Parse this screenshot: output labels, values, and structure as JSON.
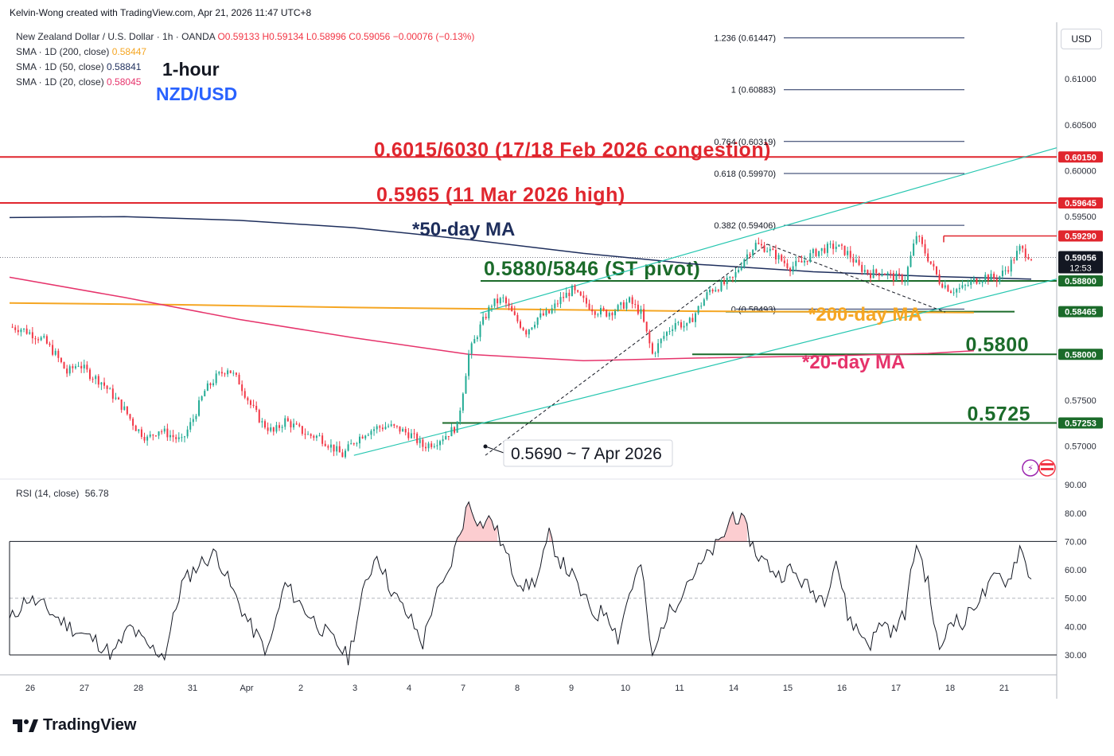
{
  "header": {
    "created_by": "Kelvin-Wong created with TradingView.com, Apr 21, 2026 11:47 UTC+8",
    "symbol": "New Zealand Dollar / U.S. Dollar · 1h · OANDA",
    "ohlc_o": "O0.59133",
    "ohlc_h": "H0.59134",
    "ohlc_l": "L0.58996",
    "ohlc_c": "C0.59056",
    "ohlc_change": "−0.00076 (−0.13%)",
    "sma200_label": "SMA · 1D (200, close)",
    "sma200_value": "0.58447",
    "sma50_label": "SMA · 1D (50, close)",
    "sma50_value": "0.58841",
    "sma20_label": "SMA · 1D (20, close)",
    "sma20_value": "0.58045",
    "timeframe_title": "1-hour",
    "pair_title": "NZD/USD"
  },
  "currency_button": "USD",
  "rsi_legend": {
    "label": "RSI (14, close)",
    "value": "56.78"
  },
  "footer_logo": "TradingView",
  "colors": {
    "up": "#22ab94",
    "down": "#f23645",
    "resistance": "#e0262e",
    "support": "#1b6b2a",
    "sma200": "#f5a623",
    "sma50": "#1e2e5c",
    "sma20": "#e6336b",
    "channel": "#26c6b0",
    "price_tag": "#131722",
    "title_blue": "#2962ff"
  },
  "chart_data": [
    {
      "type": "candlestick",
      "title": "New Zealand Dollar / U.S. Dollar · 1h · OANDA",
      "x_ticks": [
        "26",
        "27",
        "28",
        "31",
        "Apr",
        "2",
        "3",
        "4",
        "7",
        "8",
        "9",
        "10",
        "11",
        "14",
        "15",
        "16",
        "17",
        "18",
        "21"
      ],
      "y_ticks": [
        "0.61000",
        "0.60500",
        "0.60000",
        "0.59500",
        "0.57500",
        "0.57000"
      ],
      "ylim": [
        0.5665,
        0.616
      ],
      "close_path": [
        [
          0,
          0.583
        ],
        [
          2,
          0.5828
        ],
        [
          4,
          0.5822
        ],
        [
          6,
          0.5815
        ],
        [
          8,
          0.58
        ],
        [
          10,
          0.578
        ],
        [
          12,
          0.579
        ],
        [
          14,
          0.5778
        ],
        [
          16,
          0.577
        ],
        [
          18,
          0.5755
        ],
        [
          20,
          0.574
        ],
        [
          22,
          0.572
        ],
        [
          24,
          0.5708
        ],
        [
          26,
          0.5718
        ],
        [
          28,
          0.5712
        ],
        [
          30,
          0.5705
        ],
        [
          32,
          0.573
        ],
        [
          34,
          0.576
        ],
        [
          36,
          0.5775
        ],
        [
          38,
          0.5785
        ],
        [
          40,
          0.577
        ],
        [
          42,
          0.5745
        ],
        [
          44,
          0.5725
        ],
        [
          46,
          0.5715
        ],
        [
          48,
          0.5728
        ],
        [
          50,
          0.572
        ],
        [
          52,
          0.5712
        ],
        [
          54,
          0.571
        ],
        [
          56,
          0.57
        ],
        [
          58,
          0.569
        ],
        [
          60,
          0.5705
        ],
        [
          62,
          0.5715
        ],
        [
          64,
          0.572
        ],
        [
          66,
          0.5722
        ],
        [
          68,
          0.5718
        ],
        [
          70,
          0.5712
        ],
        [
          72,
          0.57
        ],
        [
          74,
          0.5704
        ],
        [
          76,
          0.5712
        ],
        [
          78,
          0.5722
        ],
        [
          80,
          0.58
        ],
        [
          82,
          0.583
        ],
        [
          84,
          0.5855
        ],
        [
          86,
          0.586
        ],
        [
          88,
          0.584
        ],
        [
          90,
          0.5825
        ],
        [
          92,
          0.584
        ],
        [
          94,
          0.5845
        ],
        [
          96,
          0.586
        ],
        [
          98,
          0.587
        ],
        [
          100,
          0.5858
        ],
        [
          102,
          0.5848
        ],
        [
          104,
          0.5845
        ],
        [
          106,
          0.585
        ],
        [
          108,
          0.5858
        ],
        [
          110,
          0.5845
        ],
        [
          112,
          0.58
        ],
        [
          114,
          0.582
        ],
        [
          116,
          0.5835
        ],
        [
          118,
          0.583
        ],
        [
          120,
          0.585
        ],
        [
          122,
          0.587
        ],
        [
          124,
          0.5875
        ],
        [
          126,
          0.5882
        ],
        [
          128,
          0.5905
        ],
        [
          130,
          0.592
        ],
        [
          132,
          0.5915
        ],
        [
          134,
          0.5905
        ],
        [
          136,
          0.5895
        ],
        [
          138,
          0.59
        ],
        [
          140,
          0.591
        ],
        [
          142,
          0.5915
        ],
        [
          144,
          0.5918
        ],
        [
          146,
          0.591
        ],
        [
          148,
          0.5895
        ],
        [
          150,
          0.5888
        ],
        [
          152,
          0.589
        ],
        [
          154,
          0.5884
        ],
        [
          156,
          0.5882
        ],
        [
          158,
          0.593
        ],
        [
          160,
          0.5905
        ],
        [
          162,
          0.588
        ],
        [
          164,
          0.587
        ],
        [
          166,
          0.5872
        ],
        [
          168,
          0.588
        ],
        [
          170,
          0.5885
        ],
        [
          172,
          0.5882
        ],
        [
          174,
          0.5895
        ],
        [
          176,
          0.5915
        ],
        [
          178,
          0.5906
        ]
      ],
      "horizontal_levels": [
        {
          "price": 0.6015,
          "label": "0.6015/6030 (17/18 Feb 2026 congestion)",
          "tag": "0.60150",
          "color": "resistance"
        },
        {
          "price": 0.5965,
          "label": "0.5965 (11 Mar 2026 high)",
          "tag": "0.59645",
          "color": "resistance"
        },
        {
          "price": 0.5929,
          "label": "",
          "tag": "0.59290",
          "color": "resistance"
        },
        {
          "price": 0.588,
          "label": "0.5880/5846 (ST pivot)",
          "tag": "0.58800",
          "color": "support"
        },
        {
          "price": 0.58465,
          "label": "",
          "tag": "0.58465",
          "color": "support"
        },
        {
          "price": 0.58,
          "label": "0.5800",
          "tag": "0.58000",
          "color": "support"
        },
        {
          "price": 0.57253,
          "label": "0.5725",
          "tag": "0.57253",
          "color": "support"
        }
      ],
      "current_price": {
        "value": "0.59056",
        "countdown": "12:53"
      },
      "fibonacci": [
        {
          "ratio": "1.236",
          "price": "(0.61447)"
        },
        {
          "ratio": "1",
          "price": "(0.60883)"
        },
        {
          "ratio": "0.764",
          "price": "(0.60319)"
        },
        {
          "ratio": "0.618",
          "price": "(0.59970)"
        },
        {
          "ratio": "0.382",
          "price": "(0.59406)"
        },
        {
          "ratio": "0",
          "price": "(0.58493)"
        }
      ],
      "annotations": {
        "sma50": "*50-day MA",
        "sma200": "*200-day MA",
        "sma20": "*20-day MA",
        "low_callout": "0.5690 ~ 7 Apr 2026"
      }
    },
    {
      "type": "line",
      "title": "RSI (14, close)",
      "ylim": [
        23,
        92
      ],
      "y_ticks": [
        "90.00",
        "80.00",
        "70.00",
        "60.00",
        "50.00",
        "40.00",
        "30.00"
      ],
      "overbought": 70,
      "midline": 50,
      "oversold": 30,
      "last": 56.78,
      "values": [
        [
          0,
          42
        ],
        [
          3,
          50
        ],
        [
          6,
          47
        ],
        [
          9,
          42
        ],
        [
          12,
          38
        ],
        [
          15,
          35
        ],
        [
          18,
          30
        ],
        [
          21,
          40
        ],
        [
          24,
          33
        ],
        [
          27,
          30
        ],
        [
          30,
          55
        ],
        [
          33,
          62
        ],
        [
          36,
          66
        ],
        [
          39,
          52
        ],
        [
          42,
          40
        ],
        [
          45,
          31
        ],
        [
          48,
          55
        ],
        [
          51,
          47
        ],
        [
          54,
          40
        ],
        [
          57,
          34
        ],
        [
          59,
          29
        ],
        [
          62,
          55
        ],
        [
          64,
          66
        ],
        [
          66,
          55
        ],
        [
          68,
          48
        ],
        [
          70,
          42
        ],
        [
          72,
          34
        ],
        [
          74,
          50
        ],
        [
          76,
          56
        ],
        [
          78,
          70
        ],
        [
          80,
          84
        ],
        [
          82,
          76
        ],
        [
          84,
          78
        ],
        [
          86,
          68
        ],
        [
          88,
          58
        ],
        [
          90,
          54
        ],
        [
          92,
          57
        ],
        [
          94,
          72
        ],
        [
          96,
          63
        ],
        [
          98,
          58
        ],
        [
          100,
          50
        ],
        [
          102,
          44
        ],
        [
          104,
          46
        ],
        [
          106,
          36
        ],
        [
          108,
          52
        ],
        [
          110,
          62
        ],
        [
          112,
          28
        ],
        [
          114,
          42
        ],
        [
          116,
          48
        ],
        [
          118,
          56
        ],
        [
          120,
          60
        ],
        [
          122,
          66
        ],
        [
          124,
          70
        ],
        [
          126,
          80
        ],
        [
          128,
          76
        ],
        [
          130,
          66
        ],
        [
          132,
          62
        ],
        [
          134,
          58
        ],
        [
          136,
          60
        ],
        [
          138,
          56
        ],
        [
          140,
          52
        ],
        [
          142,
          50
        ],
        [
          144,
          64
        ],
        [
          146,
          44
        ],
        [
          148,
          38
        ],
        [
          150,
          34
        ],
        [
          152,
          42
        ],
        [
          154,
          38
        ],
        [
          156,
          45
        ],
        [
          158,
          70
        ],
        [
          160,
          55
        ],
        [
          162,
          30
        ],
        [
          164,
          44
        ],
        [
          166,
          40
        ],
        [
          168,
          48
        ],
        [
          170,
          52
        ],
        [
          172,
          58
        ],
        [
          174,
          56
        ],
        [
          176,
          68
        ],
        [
          178,
          57
        ]
      ]
    }
  ]
}
